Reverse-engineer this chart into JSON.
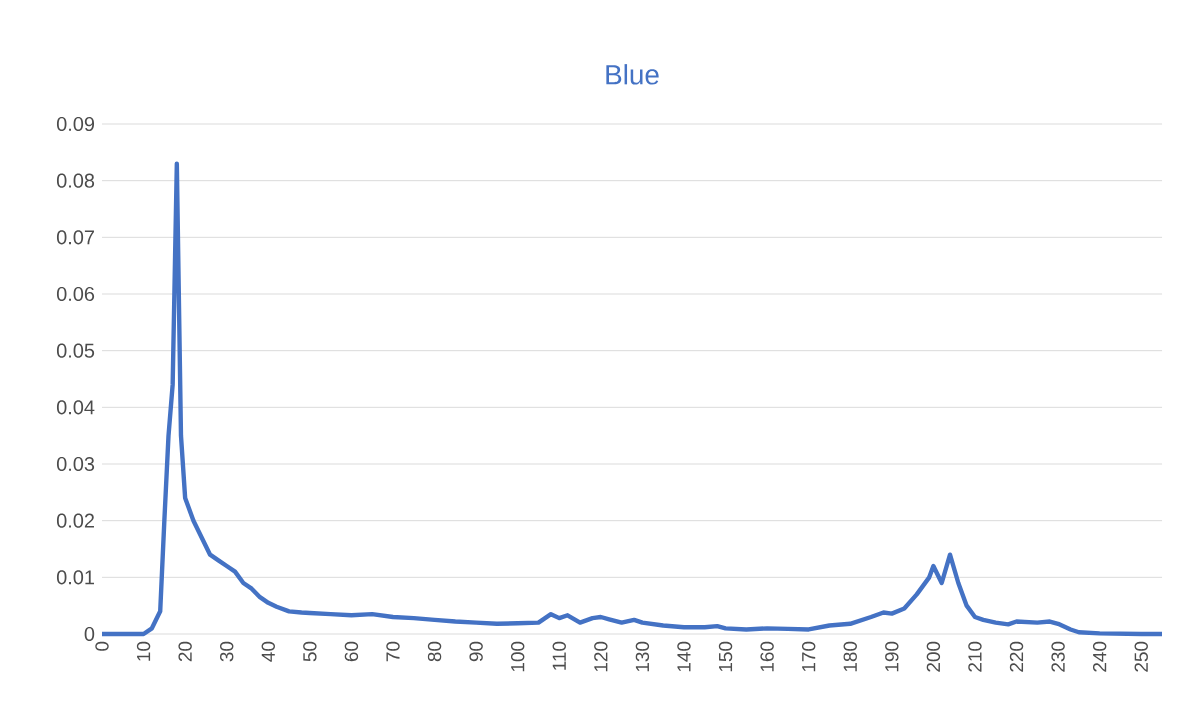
{
  "chart_data": {
    "type": "line",
    "title": "Blue",
    "color": "#4472c4",
    "grid": "y",
    "marker": "none",
    "line_style": "solid",
    "x": [
      0,
      10,
      12,
      14,
      15,
      16,
      17,
      18,
      19,
      20,
      22,
      24,
      26,
      28,
      30,
      32,
      34,
      36,
      38,
      40,
      42,
      45,
      48,
      50,
      55,
      60,
      65,
      70,
      75,
      80,
      85,
      90,
      95,
      100,
      105,
      108,
      110,
      112,
      115,
      118,
      120,
      122,
      125,
      128,
      130,
      135,
      140,
      145,
      148,
      150,
      155,
      160,
      165,
      170,
      175,
      180,
      185,
      188,
      190,
      193,
      196,
      199,
      200,
      202,
      204,
      206,
      208,
      210,
      212,
      215,
      218,
      220,
      225,
      228,
      230,
      233,
      235,
      240,
      250,
      255
    ],
    "values": [
      0,
      0,
      0.001,
      0.004,
      0.02,
      0.035,
      0.044,
      0.083,
      0.035,
      0.024,
      0.02,
      0.017,
      0.014,
      0.013,
      0.012,
      0.011,
      0.009,
      0.008,
      0.0065,
      0.0055,
      0.0048,
      0.004,
      0.0038,
      0.0037,
      0.0035,
      0.0033,
      0.0035,
      0.003,
      0.0028,
      0.0025,
      0.0022,
      0.002,
      0.0018,
      0.0019,
      0.002,
      0.0035,
      0.0028,
      0.0033,
      0.002,
      0.0028,
      0.003,
      0.0026,
      0.002,
      0.0025,
      0.002,
      0.0015,
      0.0012,
      0.0012,
      0.0014,
      0.001,
      0.0008,
      0.001,
      0.0009,
      0.0008,
      0.0015,
      0.0018,
      0.003,
      0.0038,
      0.0036,
      0.0045,
      0.007,
      0.01,
      0.012,
      0.009,
      0.014,
      0.009,
      0.005,
      0.003,
      0.0025,
      0.002,
      0.0017,
      0.0022,
      0.002,
      0.0022,
      0.0018,
      0.0008,
      0.0003,
      0.0001,
      0,
      0
    ],
    "xlim": [
      0,
      255
    ],
    "xticks": [
      0,
      10,
      20,
      30,
      40,
      50,
      60,
      70,
      80,
      90,
      100,
      110,
      120,
      130,
      140,
      150,
      160,
      170,
      180,
      190,
      200,
      210,
      220,
      230,
      240,
      250
    ],
    "ylim": [
      0,
      0.09
    ],
    "yticks": [
      0,
      0.01,
      0.02,
      0.03,
      0.04,
      0.05,
      0.06,
      0.07,
      0.08,
      0.09
    ]
  }
}
